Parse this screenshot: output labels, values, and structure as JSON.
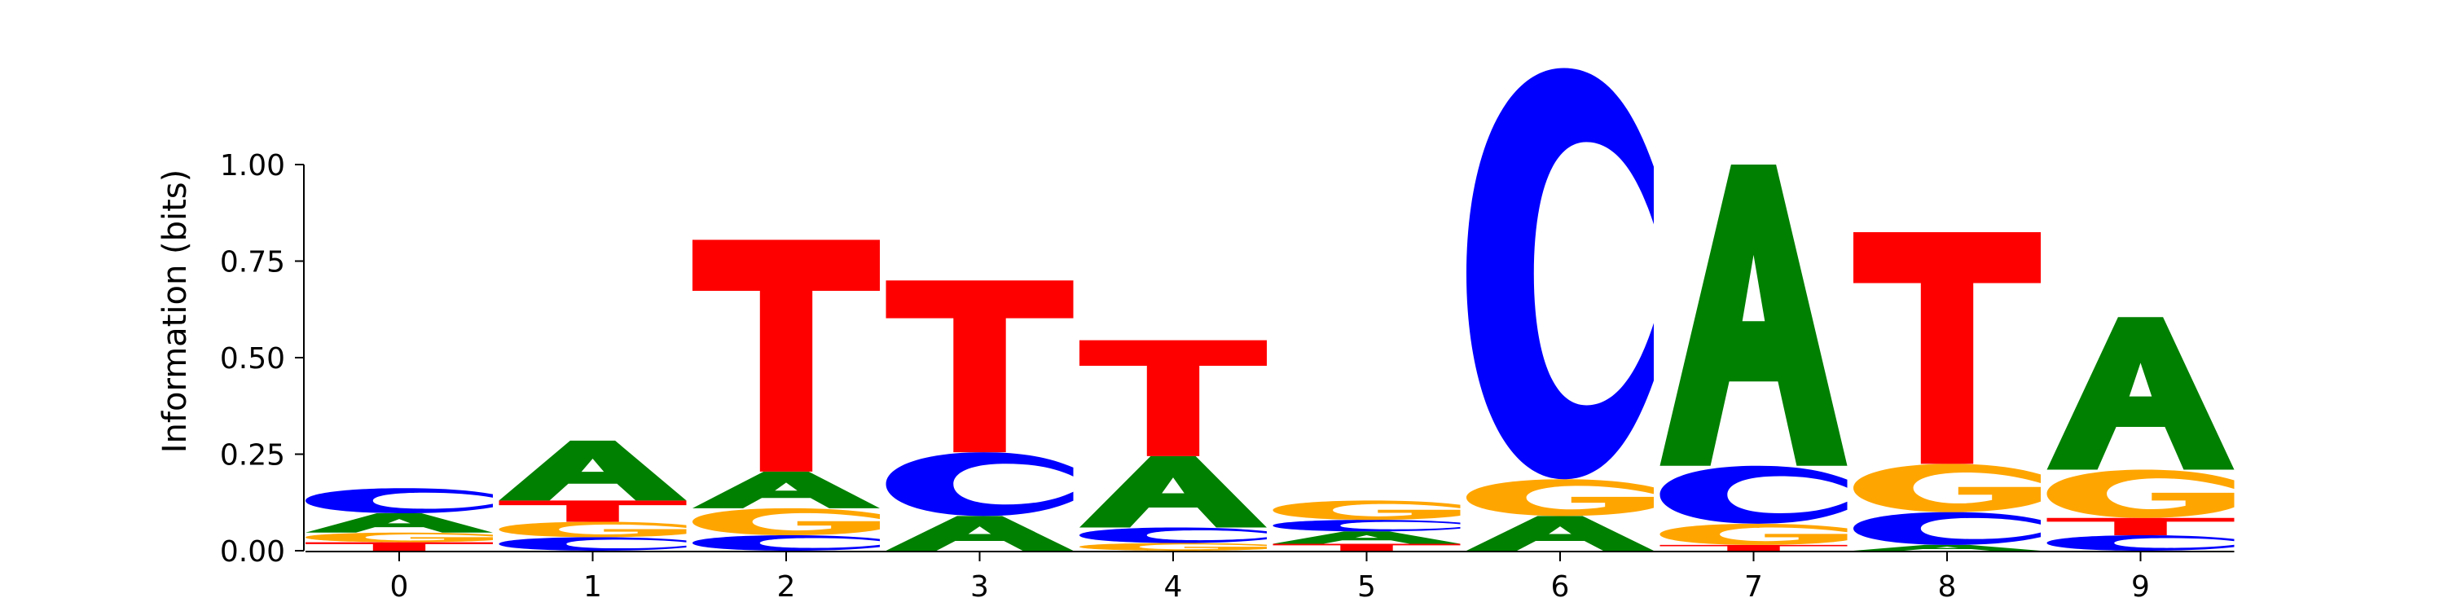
{
  "chart_data": {
    "type": "sequence-logo",
    "title": "",
    "xlabel": "",
    "ylabel": "Information (bits)",
    "x_ticks": [
      "0",
      "1",
      "2",
      "3",
      "4",
      "5",
      "6",
      "7",
      "8",
      "9"
    ],
    "y_ticks": [
      "0.00",
      "0.25",
      "0.50",
      "0.75",
      "1.00"
    ],
    "y_tick_values": [
      0,
      0.25,
      0.5,
      0.75,
      1.0
    ],
    "ylim": [
      0,
      1.25
    ],
    "colors": {
      "A": "#008000",
      "C": "#0000ff",
      "G": "#ffa500",
      "T": "#ff0000"
    },
    "positions": [
      {
        "position": 0,
        "stack": [
          {
            "base": "T",
            "height": 0.022
          },
          {
            "base": "G",
            "height": 0.025
          },
          {
            "base": "A",
            "height": 0.05
          },
          {
            "base": "C",
            "height": 0.065
          }
        ]
      },
      {
        "position": 1,
        "stack": [
          {
            "base": "C",
            "height": 0.035
          },
          {
            "base": "G",
            "height": 0.04
          },
          {
            "base": "T",
            "height": 0.055
          },
          {
            "base": "A",
            "height": 0.155
          }
        ]
      },
      {
        "position": 2,
        "stack": [
          {
            "base": "C",
            "height": 0.04
          },
          {
            "base": "G",
            "height": 0.07
          },
          {
            "base": "A",
            "height": 0.095
          },
          {
            "base": "T",
            "height": 0.6
          }
        ]
      },
      {
        "position": 3,
        "stack": [
          {
            "base": "A",
            "height": 0.09
          },
          {
            "base": "C",
            "height": 0.165
          },
          {
            "base": "T",
            "height": 0.445
          }
        ]
      },
      {
        "position": 4,
        "stack": [
          {
            "base": "G",
            "height": 0.02
          },
          {
            "base": "C",
            "height": 0.04
          },
          {
            "base": "A",
            "height": 0.185
          },
          {
            "base": "T",
            "height": 0.3
          }
        ]
      },
      {
        "position": 5,
        "stack": [
          {
            "base": "T",
            "height": 0.018
          },
          {
            "base": "A",
            "height": 0.032
          },
          {
            "base": "C",
            "height": 0.03
          },
          {
            "base": "G",
            "height": 0.05
          }
        ]
      },
      {
        "position": 6,
        "stack": [
          {
            "base": "A",
            "height": 0.09
          },
          {
            "base": "G",
            "height": 0.095
          },
          {
            "base": "C",
            "height": 1.065
          }
        ]
      },
      {
        "position": 7,
        "stack": [
          {
            "base": "T",
            "height": 0.015
          },
          {
            "base": "G",
            "height": 0.055
          },
          {
            "base": "C",
            "height": 0.15
          },
          {
            "base": "A",
            "height": 0.78
          }
        ]
      },
      {
        "position": 8,
        "stack": [
          {
            "base": "A",
            "height": 0.015
          },
          {
            "base": "C",
            "height": 0.085
          },
          {
            "base": "G",
            "height": 0.125
          },
          {
            "base": "T",
            "height": 0.6
          }
        ]
      },
      {
        "position": 9,
        "stack": [
          {
            "base": "C",
            "height": 0.04
          },
          {
            "base": "T",
            "height": 0.045
          },
          {
            "base": "G",
            "height": 0.125
          },
          {
            "base": "A",
            "height": 0.395
          }
        ]
      }
    ]
  }
}
